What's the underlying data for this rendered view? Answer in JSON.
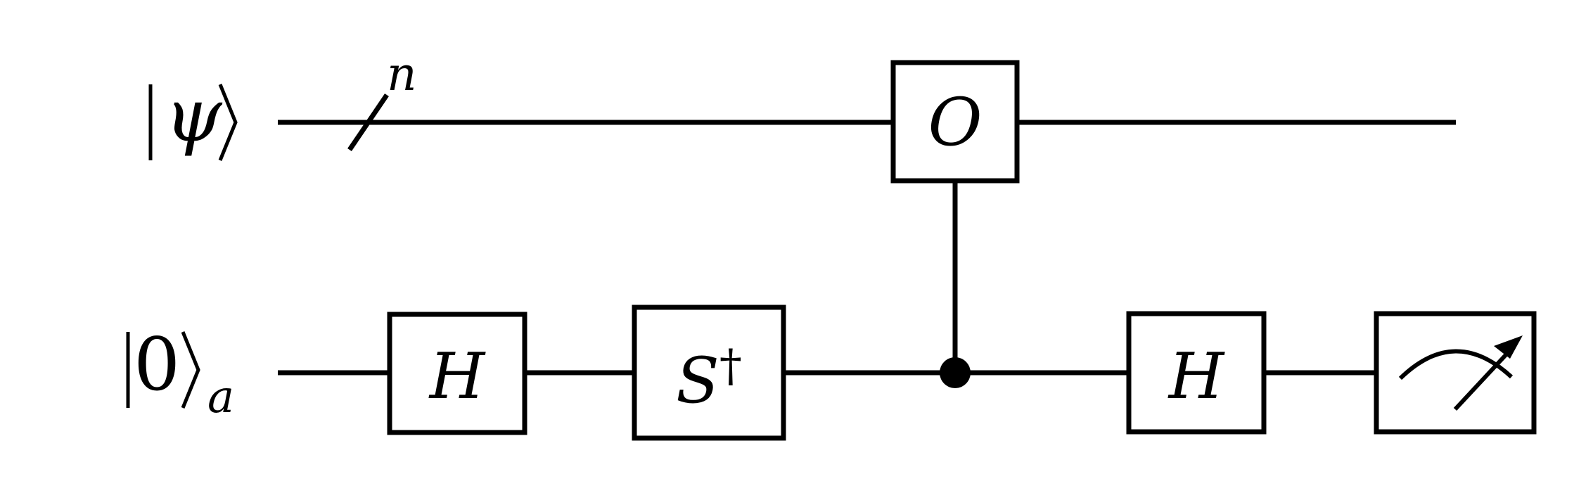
{
  "circuit": {
    "qubits": [
      {
        "label": "ψ",
        "bundle_size": "n"
      },
      {
        "label": "0",
        "subscript": "a"
      }
    ],
    "gates": [
      {
        "label": "H"
      },
      {
        "label": "S",
        "superscript": "†"
      },
      {
        "label": "O"
      },
      {
        "label": "H"
      }
    ]
  }
}
